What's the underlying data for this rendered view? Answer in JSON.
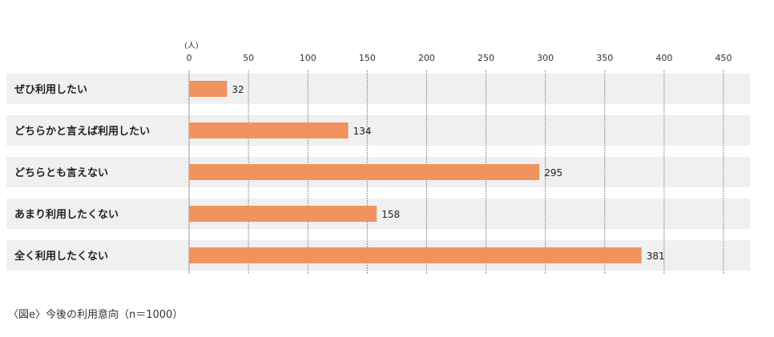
{
  "chart_data": {
    "type": "bar",
    "orientation": "horizontal",
    "unit": "(人)",
    "categories": [
      "ぜひ利用したい",
      "どちらかと言えば利用したい",
      "どちらとも言えない",
      "あまり利用したくない",
      "全く利用したくない"
    ],
    "values": [
      32,
      134,
      295,
      158,
      381
    ],
    "xlim": [
      0,
      450
    ],
    "xticks": [
      "0",
      "50",
      "100",
      "150",
      "200",
      "250",
      "300",
      "350",
      "400",
      "450"
    ],
    "bar_color": "#F0935E",
    "row_band_color": "#F0F0F0",
    "grid": "dotted vertical",
    "caption": "〈図e〉今後の利用意向（n＝1000）"
  }
}
